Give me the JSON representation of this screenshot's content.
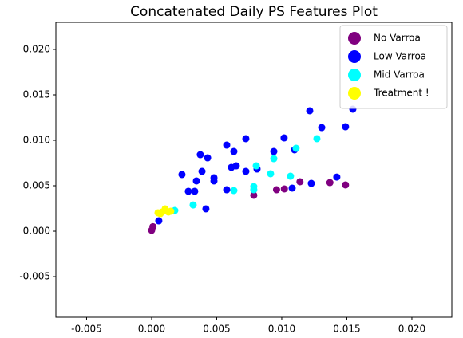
{
  "chart_data": {
    "type": "scatter",
    "title": "Concatenated Daily PS Features Plot",
    "xlim": [
      -0.00736,
      0.02307
    ],
    "ylim": [
      -0.00947,
      0.02298
    ],
    "xticks": [
      {
        "value": -0.005,
        "label": "-0.005"
      },
      {
        "value": 0,
        "label": "0.000"
      },
      {
        "value": 0.005,
        "label": "0.005"
      },
      {
        "value": 0.01,
        "label": "0.010"
      },
      {
        "value": 0.015,
        "label": "0.015"
      },
      {
        "value": 0.02,
        "label": "0.020"
      }
    ],
    "yticks": [
      {
        "value": -0.005,
        "label": "-0.005"
      },
      {
        "value": 0,
        "label": "0.000"
      },
      {
        "value": 0.005,
        "label": "0.005"
      },
      {
        "value": 0.01,
        "label": "0.010"
      },
      {
        "value": 0.015,
        "label": "0.015"
      },
      {
        "value": 0.02,
        "label": "0.020"
      }
    ],
    "legend": "upper right",
    "series": [
      {
        "name": "No Varroa",
        "color": "#800080",
        "x": [
          0,
          0.0001,
          0.00785,
          0.0096,
          0.0102,
          0.0114,
          0.0137,
          0.0149
        ],
        "values": [
          0.0001,
          0.0005,
          0.00395,
          0.00456,
          0.00465,
          0.00544,
          0.00535,
          0.00509
        ]
      },
      {
        "name": "Low Varroa",
        "color": "#0000ff",
        "x": [
          0.00055,
          0.00233,
          0.00282,
          0.00331,
          0.00344,
          0.00374,
          0.00387,
          0.0043,
          0.00479,
          0.00479,
          0.00417,
          0.00577,
          0.00577,
          0.00613,
          0.00632,
          0.0065,
          0.00724,
          0.00724,
          0.0081,
          0.00939,
          0.01018,
          0.0108,
          0.01098,
          0.01215,
          0.01227,
          0.01307,
          0.01423,
          0.0149,
          0.01546
        ],
        "values": [
          0.00114,
          0.00623,
          0.00439,
          0.00439,
          0.00553,
          0.00842,
          0.00658,
          0.00807,
          0.00553,
          0.00588,
          0.00246,
          0.00456,
          0.00947,
          0.00702,
          0.00877,
          0.00719,
          0.01018,
          0.00658,
          0.00684,
          0.00877,
          0.01026,
          0.00474,
          0.00895,
          0.01325,
          0.00526,
          0.0114,
          0.00596,
          0.01149,
          0.01342
        ]
      },
      {
        "name": "Mid Varroa",
        "color": "#00ffff",
        "x": [
          0.00178,
          0.00319,
          0.00632,
          0.00785,
          0.00785,
          0.00804,
          0.00914,
          0.00939,
          0.01067,
          0.0111,
          0.0127
        ],
        "values": [
          0.00228,
          0.00289,
          0.00447,
          0.00491,
          0.00456,
          0.00719,
          0.00632,
          0.00798,
          0.00605,
          0.00912,
          0.01018
        ]
      },
      {
        "name": "Treatment !",
        "color": "#ffff00",
        "x": [
          0.00049,
          0.0008,
          0.00104,
          0.00129,
          0.00147,
          0.00067
        ],
        "values": [
          0.00202,
          0.00211,
          0.00246,
          0.00211,
          0.00219,
          0.00193
        ]
      }
    ]
  }
}
